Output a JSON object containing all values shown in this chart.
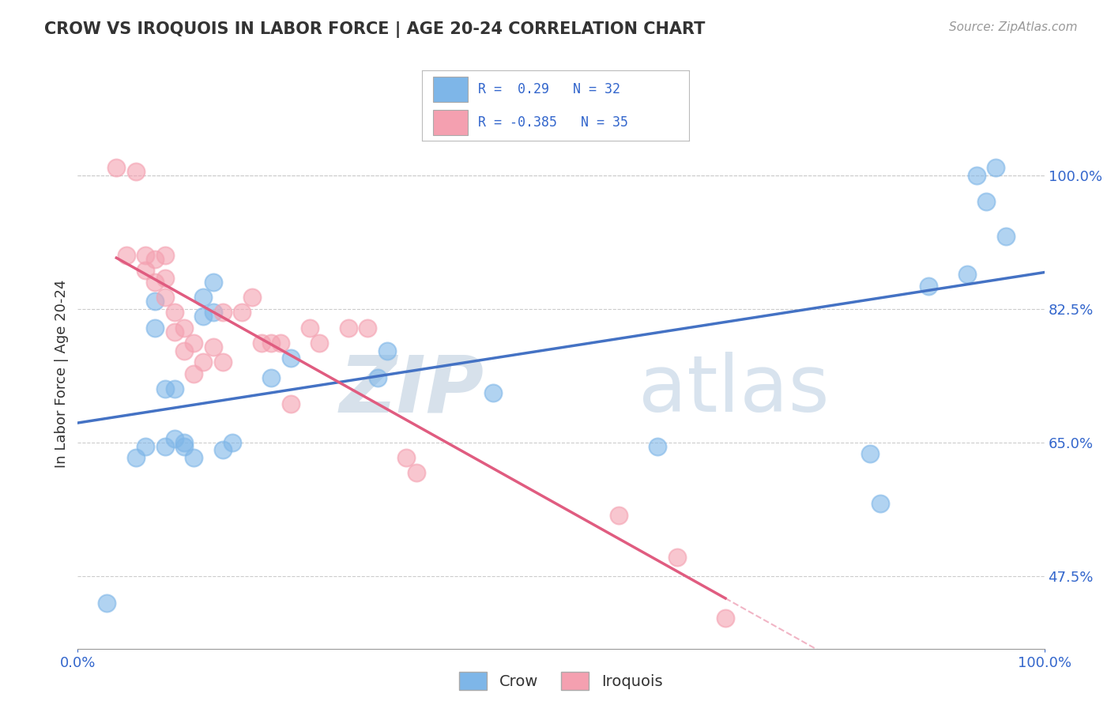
{
  "title": "CROW VS IROQUOIS IN LABOR FORCE | AGE 20-24 CORRELATION CHART",
  "source": "Source: ZipAtlas.com",
  "ylabel": "In Labor Force | Age 20-24",
  "xlim": [
    0.0,
    1.0
  ],
  "ylim": [
    0.38,
    1.1
  ],
  "yticks": [
    0.475,
    0.65,
    0.825,
    1.0
  ],
  "ytick_labels": [
    "47.5%",
    "65.0%",
    "82.5%",
    "100.0%"
  ],
  "xtick_labels": [
    "0.0%",
    "100.0%"
  ],
  "crow_R": 0.29,
  "crow_N": 32,
  "iroquois_R": -0.385,
  "iroquois_N": 35,
  "crow_color": "#7EB6E8",
  "iroquois_color": "#F4A0B0",
  "crow_line_color": "#4472C4",
  "iroquois_line_color": "#E05C80",
  "crow_x": [
    0.03,
    0.06,
    0.07,
    0.08,
    0.08,
    0.09,
    0.09,
    0.1,
    0.1,
    0.11,
    0.11,
    0.12,
    0.13,
    0.13,
    0.14,
    0.14,
    0.15,
    0.16,
    0.2,
    0.22,
    0.31,
    0.32,
    0.43,
    0.6,
    0.82,
    0.83,
    0.88,
    0.92,
    0.93,
    0.94,
    0.95,
    0.96
  ],
  "crow_y": [
    0.44,
    0.63,
    0.645,
    0.8,
    0.835,
    0.645,
    0.72,
    0.655,
    0.72,
    0.645,
    0.65,
    0.63,
    0.815,
    0.84,
    0.82,
    0.86,
    0.64,
    0.65,
    0.735,
    0.76,
    0.735,
    0.77,
    0.715,
    0.645,
    0.635,
    0.57,
    0.855,
    0.87,
    1.0,
    0.965,
    1.01,
    0.92
  ],
  "iroquois_x": [
    0.04,
    0.05,
    0.06,
    0.07,
    0.07,
    0.08,
    0.08,
    0.09,
    0.09,
    0.09,
    0.1,
    0.1,
    0.11,
    0.11,
    0.12,
    0.12,
    0.13,
    0.14,
    0.15,
    0.15,
    0.17,
    0.18,
    0.19,
    0.2,
    0.21,
    0.22,
    0.24,
    0.25,
    0.28,
    0.3,
    0.34,
    0.35,
    0.56,
    0.62,
    0.67
  ],
  "iroquois_y": [
    1.01,
    0.895,
    1.005,
    0.875,
    0.895,
    0.86,
    0.89,
    0.84,
    0.865,
    0.895,
    0.795,
    0.82,
    0.77,
    0.8,
    0.74,
    0.78,
    0.755,
    0.775,
    0.82,
    0.755,
    0.82,
    0.84,
    0.78,
    0.78,
    0.78,
    0.7,
    0.8,
    0.78,
    0.8,
    0.8,
    0.63,
    0.61,
    0.555,
    0.5,
    0.42
  ],
  "background_color": "#FFFFFF",
  "grid_color": "#CCCCCC"
}
